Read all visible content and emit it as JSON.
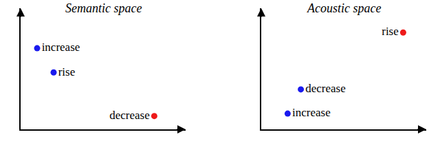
{
  "chart_data": [
    {
      "type": "scatter",
      "title": "Semantic space",
      "labels": [
        "increase",
        "rise",
        "decrease"
      ],
      "x": [
        1.0,
        2.0,
        8.1
      ],
      "values": [
        6.7,
        4.7,
        1.1
      ],
      "colors": [
        "#1a1aee",
        "#1a1aee",
        "#ee1a1a"
      ],
      "xlim": [
        0,
        10
      ],
      "ylim": [
        0,
        10
      ],
      "tick_labels": false,
      "grid": false
    },
    {
      "type": "scatter",
      "title": "Acoustic space",
      "labels": [
        "rise",
        "decrease",
        "increase"
      ],
      "x": [
        8.6,
        2.4,
        1.6
      ],
      "values": [
        8.0,
        3.3,
        1.3
      ],
      "colors": [
        "#ee1a1a",
        "#1a1aee",
        "#1a1aee"
      ],
      "xlim": [
        0,
        10
      ],
      "ylim": [
        0,
        10
      ],
      "tick_labels": false,
      "grid": false
    }
  ]
}
